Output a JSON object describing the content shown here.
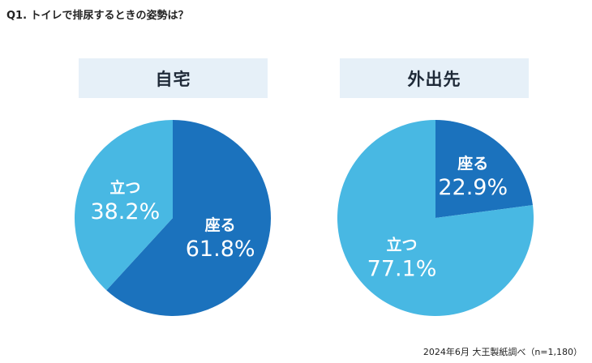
{
  "question": "Q1. トイレで排尿するときの姿勢は？",
  "source": "2024年6月 大王製紙調べ（n=1,180）",
  "colors": {
    "header_bg": "#e6f0f8",
    "dark_blue": "#1b72bd",
    "light_blue": "#48b8e3",
    "label_text": "#ffffff"
  },
  "chart_data": [
    {
      "type": "pie",
      "title": "自宅",
      "unit": "%",
      "slices": [
        {
          "label": "座る",
          "value": 61.8,
          "display": "61.8%",
          "color": "#1b72bd"
        },
        {
          "label": "立つ",
          "value": 38.2,
          "display": "38.2%",
          "color": "#48b8e3"
        }
      ]
    },
    {
      "type": "pie",
      "title": "外出先",
      "unit": "%",
      "slices": [
        {
          "label": "座る",
          "value": 22.9,
          "display": "22.9%",
          "color": "#1b72bd"
        },
        {
          "label": "立つ",
          "value": 77.1,
          "display": "77.1%",
          "color": "#48b8e3"
        }
      ]
    }
  ]
}
